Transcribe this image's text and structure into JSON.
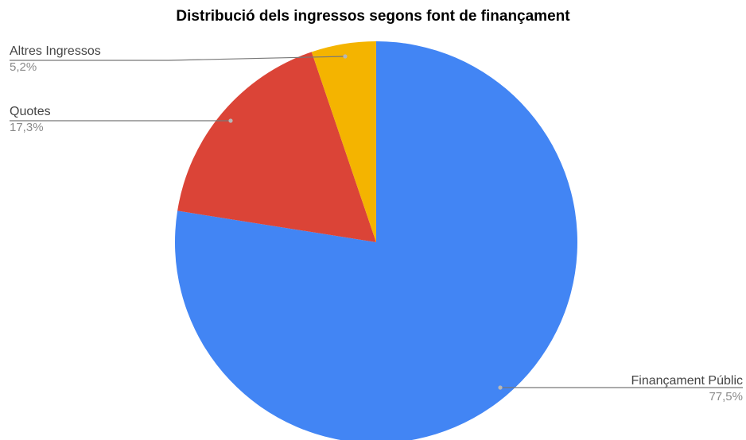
{
  "chart_data": {
    "type": "pie",
    "title": "Distribució dels ingressos segons font de finançament",
    "slices": [
      {
        "label": "Finançament Públic",
        "value": 77.5,
        "display": "77,5%",
        "color": "#4285f4"
      },
      {
        "label": "Quotes",
        "value": 17.3,
        "display": "17,3%",
        "color": "#db4437"
      },
      {
        "label": "Altres Ingressos",
        "value": 5.2,
        "display": "5,2%",
        "color": "#f4b400"
      }
    ],
    "start": "12 o'clock",
    "direction": "clockwise"
  }
}
